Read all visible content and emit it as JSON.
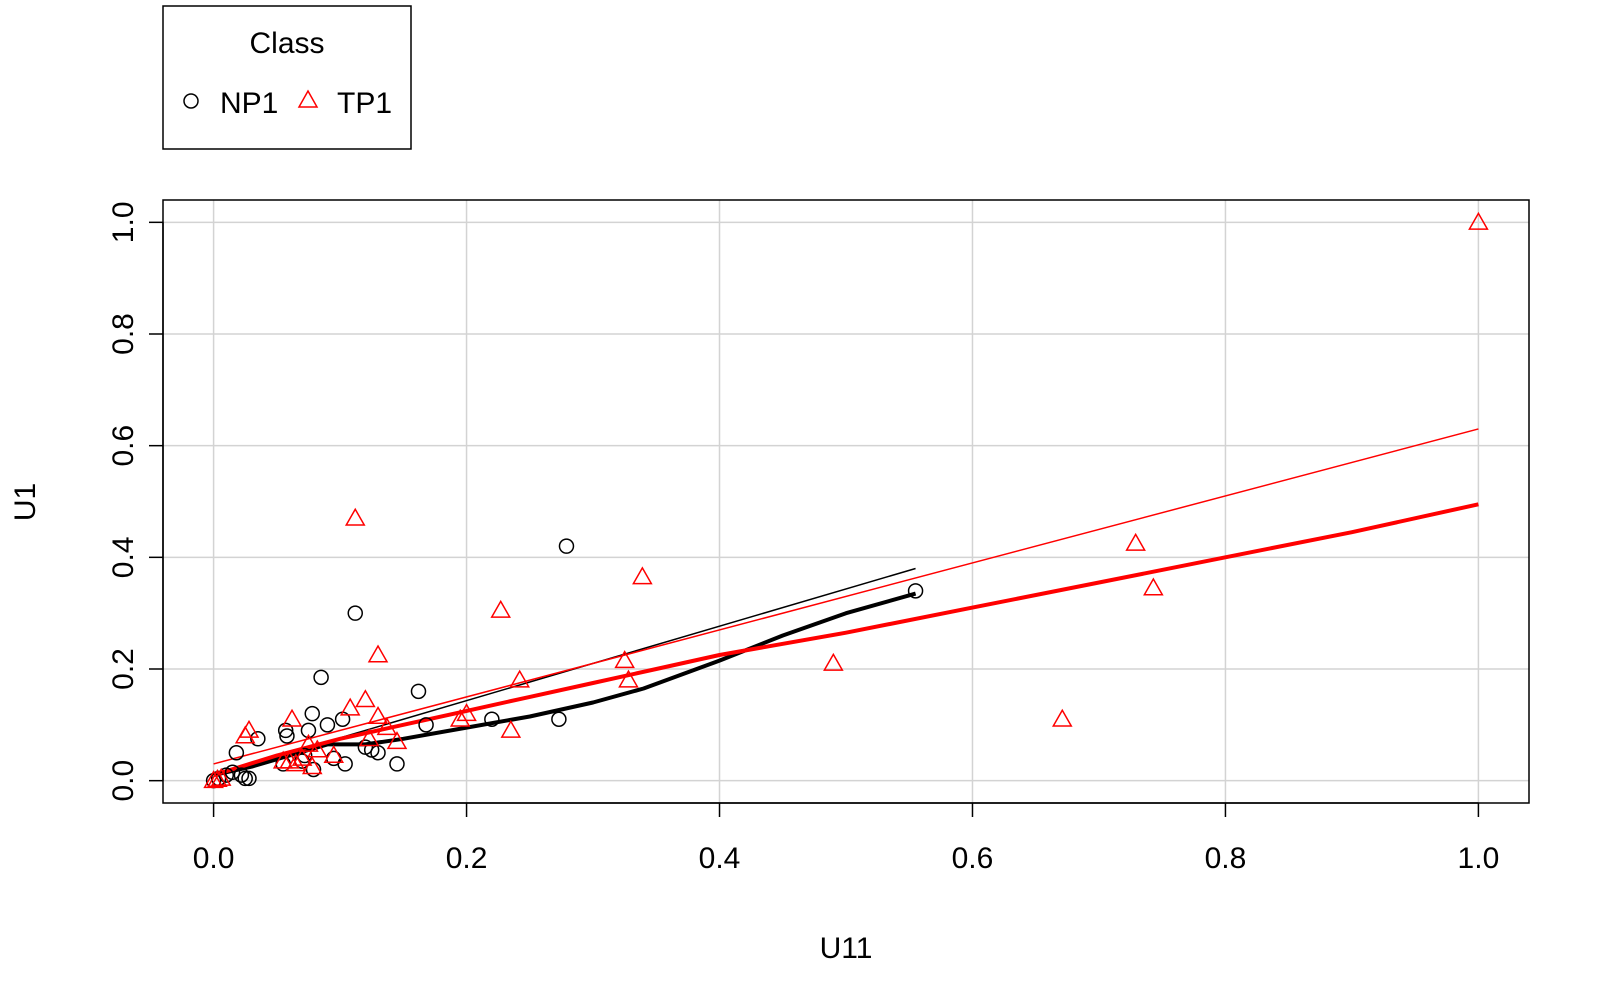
{
  "chart_data": {
    "type": "scatter",
    "xlabel": "U11",
    "ylabel": "U1",
    "xlim": [
      -0.04,
      1.04
    ],
    "ylim": [
      -0.04,
      1.04
    ],
    "x_ticks": [
      0.0,
      0.2,
      0.4,
      0.6,
      0.8,
      1.0
    ],
    "x_tick_labels": [
      "0.0",
      "0.2",
      "0.4",
      "0.6",
      "0.8",
      "1.0"
    ],
    "y_ticks": [
      0.0,
      0.2,
      0.4,
      0.6,
      0.8,
      1.0
    ],
    "y_tick_labels": [
      "0.0",
      "0.2",
      "0.4",
      "0.6",
      "0.8",
      "1.0"
    ],
    "grid": true,
    "legend": {
      "title": "Class",
      "placement": "top-left outside",
      "entries": [
        "NP1",
        "TP1"
      ]
    },
    "series": [
      {
        "name": "NP1",
        "marker": "circle",
        "color": "#000000",
        "points": [
          [
            0.0,
            0.0
          ],
          [
            0.004,
            0.004
          ],
          [
            0.01,
            0.01
          ],
          [
            0.015,
            0.015
          ],
          [
            0.018,
            0.05
          ],
          [
            0.022,
            0.01
          ],
          [
            0.025,
            0.004
          ],
          [
            0.028,
            0.004
          ],
          [
            0.035,
            0.075
          ],
          [
            0.055,
            0.03
          ],
          [
            0.057,
            0.09
          ],
          [
            0.058,
            0.08
          ],
          [
            0.07,
            0.035
          ],
          [
            0.072,
            0.045
          ],
          [
            0.075,
            0.09
          ],
          [
            0.078,
            0.12
          ],
          [
            0.079,
            0.02
          ],
          [
            0.085,
            0.185
          ],
          [
            0.09,
            0.1
          ],
          [
            0.095,
            0.04
          ],
          [
            0.102,
            0.11
          ],
          [
            0.104,
            0.03
          ],
          [
            0.112,
            0.3
          ],
          [
            0.12,
            0.06
          ],
          [
            0.125,
            0.055
          ],
          [
            0.13,
            0.05
          ],
          [
            0.145,
            0.03
          ],
          [
            0.162,
            0.16
          ],
          [
            0.168,
            0.1
          ],
          [
            0.22,
            0.11
          ],
          [
            0.273,
            0.11
          ],
          [
            0.279,
            0.42
          ],
          [
            0.555,
            0.34
          ]
        ],
        "linear_fit": [
          [
            0.0,
            0.01
          ],
          [
            0.555,
            0.38
          ]
        ],
        "smooth": [
          [
            0.0,
            0.01
          ],
          [
            0.03,
            0.025
          ],
          [
            0.06,
            0.045
          ],
          [
            0.09,
            0.065
          ],
          [
            0.12,
            0.065
          ],
          [
            0.15,
            0.075
          ],
          [
            0.2,
            0.095
          ],
          [
            0.25,
            0.115
          ],
          [
            0.3,
            0.14
          ],
          [
            0.34,
            0.165
          ],
          [
            0.4,
            0.215
          ],
          [
            0.45,
            0.26
          ],
          [
            0.5,
            0.3
          ],
          [
            0.555,
            0.335
          ]
        ]
      },
      {
        "name": "TP1",
        "marker": "triangle",
        "color": "#ff0000",
        "points": [
          [
            0.0,
            0.0
          ],
          [
            0.003,
            0.002
          ],
          [
            0.006,
            0.004
          ],
          [
            0.025,
            0.08
          ],
          [
            0.028,
            0.09
          ],
          [
            0.055,
            0.035
          ],
          [
            0.06,
            0.035
          ],
          [
            0.062,
            0.11
          ],
          [
            0.065,
            0.03
          ],
          [
            0.07,
            0.04
          ],
          [
            0.075,
            0.065
          ],
          [
            0.078,
            0.025
          ],
          [
            0.082,
            0.055
          ],
          [
            0.095,
            0.045
          ],
          [
            0.108,
            0.13
          ],
          [
            0.112,
            0.47
          ],
          [
            0.12,
            0.145
          ],
          [
            0.123,
            0.075
          ],
          [
            0.13,
            0.225
          ],
          [
            0.13,
            0.115
          ],
          [
            0.137,
            0.095
          ],
          [
            0.145,
            0.07
          ],
          [
            0.195,
            0.11
          ],
          [
            0.2,
            0.12
          ],
          [
            0.227,
            0.305
          ],
          [
            0.235,
            0.09
          ],
          [
            0.242,
            0.18
          ],
          [
            0.325,
            0.215
          ],
          [
            0.328,
            0.18
          ],
          [
            0.339,
            0.365
          ],
          [
            0.49,
            0.21
          ],
          [
            0.671,
            0.11
          ],
          [
            0.729,
            0.425
          ],
          [
            0.743,
            0.345
          ],
          [
            1.0,
            1.0
          ]
        ],
        "linear_fit": [
          [
            0.0,
            0.03
          ],
          [
            1.0,
            0.63
          ]
        ],
        "smooth": [
          [
            0.0,
            0.01
          ],
          [
            0.05,
            0.045
          ],
          [
            0.1,
            0.075
          ],
          [
            0.15,
            0.1
          ],
          [
            0.2,
            0.125
          ],
          [
            0.25,
            0.15
          ],
          [
            0.3,
            0.175
          ],
          [
            0.35,
            0.2
          ],
          [
            0.4,
            0.225
          ],
          [
            0.5,
            0.265
          ],
          [
            0.6,
            0.31
          ],
          [
            0.7,
            0.355
          ],
          [
            0.8,
            0.4
          ],
          [
            0.9,
            0.445
          ],
          [
            1.0,
            0.495
          ]
        ]
      }
    ]
  }
}
